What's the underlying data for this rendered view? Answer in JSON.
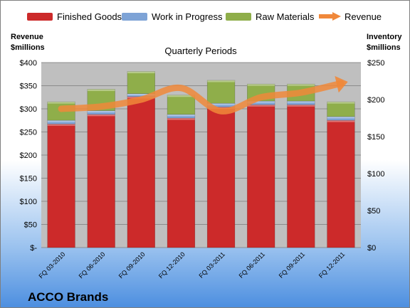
{
  "colors": {
    "finished_goods": "#cc2a2a",
    "work_in_progress": "#7ea3d6",
    "raw_materials": "#8fae4a",
    "revenue": "#f0883a",
    "plot_bg": "#bfbfbf"
  },
  "chart_data": {
    "type": "bar",
    "title": "Quarterly Periods",
    "company": "ACCO Brands",
    "categories": [
      "FQ 03-2010",
      "FQ 06-2010",
      "FQ 09-2010",
      "FQ 12-2010",
      "FQ 03-2011",
      "FQ 06-2011",
      "FQ 09-2011",
      "FQ 12-2011"
    ],
    "series": [
      {
        "name": "Finished Goods",
        "axis": "right",
        "stacked": true,
        "values": [
          167,
          180,
          204,
          175,
          190,
          193,
          193,
          172
        ]
      },
      {
        "name": "Work in Progress",
        "axis": "right",
        "stacked": true,
        "values": [
          5,
          5,
          4,
          5,
          5,
          5,
          5,
          5
        ]
      },
      {
        "name": "Raw Materials",
        "axis": "right",
        "stacked": true,
        "values": [
          25,
          29,
          30,
          26,
          31,
          23,
          23,
          20
        ]
      },
      {
        "name": "Revenue",
        "axis": "left",
        "type": "line",
        "values": [
          300,
          305,
          320,
          345,
          295,
          325,
          335,
          355
        ]
      }
    ],
    "y_left": {
      "label": "Revenue $millions",
      "ylim": [
        0,
        400
      ],
      "ticks": [
        "$-",
        "$50",
        "$100",
        "$150",
        "$200",
        "$250",
        "$300",
        "$350",
        "$400"
      ]
    },
    "y_right": {
      "label": "Inventory $millions",
      "ylim": [
        0,
        250
      ],
      "ticks": [
        "$0",
        "$50",
        "$100",
        "$150",
        "$200",
        "$250"
      ]
    },
    "legend": "top",
    "grid": true
  }
}
